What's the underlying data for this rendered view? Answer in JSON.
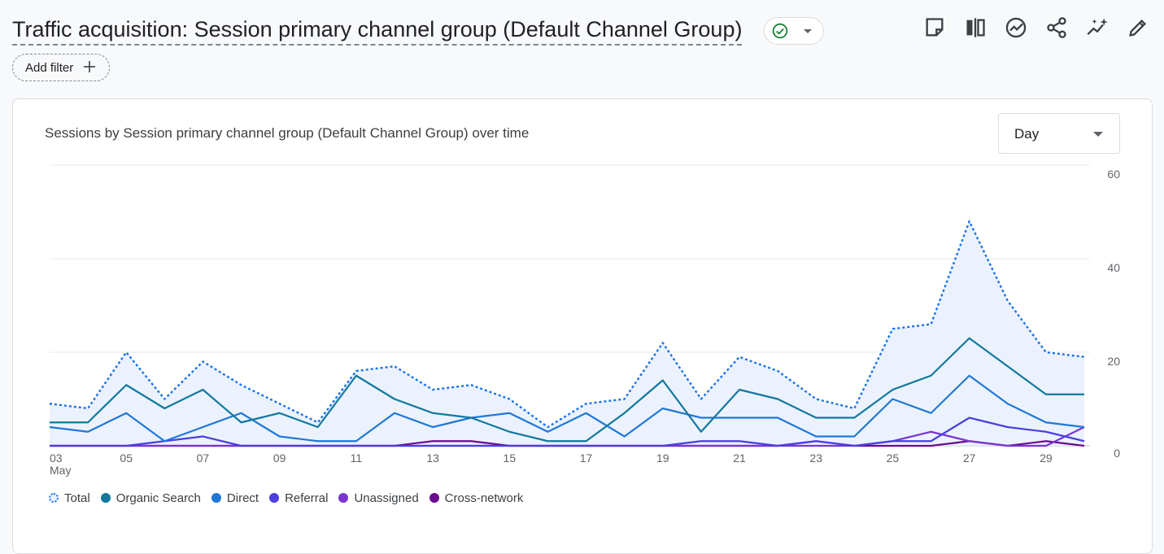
{
  "header": {
    "title": "Traffic acquisition: Session primary channel group (Default Channel Group)",
    "add_filter_label": "Add filter"
  },
  "toolbar": {
    "icons": [
      "note-icon",
      "compare-icon",
      "insights-icon",
      "share-icon",
      "sparkle-trend-icon",
      "edit-pencil-icon"
    ]
  },
  "card": {
    "select_value": "Day"
  },
  "colors": {
    "total": "#1a73e8",
    "organic_search": "#12789e",
    "direct": "#1f78d8",
    "referral": "#4b3fe0",
    "unassigned": "#7b35d0",
    "cross_network": "#6b0b8e",
    "area_fill": "#e8f0fe"
  },
  "chart_data": {
    "type": "line",
    "title": "Sessions by Session primary channel group (Default Channel Group) over time",
    "x": [
      "03",
      "04",
      "05",
      "06",
      "07",
      "08",
      "09",
      "10",
      "11",
      "12",
      "13",
      "14",
      "15",
      "16",
      "17",
      "18",
      "19",
      "20",
      "21",
      "22",
      "23",
      "24",
      "25",
      "26",
      "27",
      "28",
      "29",
      "30"
    ],
    "x_tick_labels": [
      "03",
      "05",
      "07",
      "09",
      "11",
      "13",
      "15",
      "17",
      "19",
      "21",
      "23",
      "25",
      "27",
      "29"
    ],
    "x_sublabel": "May",
    "ylim": [
      0,
      60
    ],
    "y_ticks": [
      "0",
      "20",
      "40",
      "60"
    ],
    "y_axis_side": "right",
    "grid": true,
    "legend_position": "bottom-left",
    "series": [
      {
        "name": "Total",
        "style": "dotted",
        "area": true,
        "values": [
          9,
          8,
          20,
          10,
          18,
          13,
          9,
          5,
          16,
          17,
          12,
          13,
          10,
          4,
          9,
          10,
          22,
          10,
          19,
          16,
          10,
          8,
          25,
          26,
          48,
          31,
          20,
          19
        ]
      },
      {
        "name": "Organic Search",
        "values": [
          5,
          5,
          13,
          8,
          12,
          5,
          7,
          4,
          15,
          10,
          7,
          6,
          3,
          1,
          1,
          7,
          14,
          3,
          12,
          10,
          6,
          6,
          12,
          15,
          23,
          17,
          11,
          11
        ]
      },
      {
        "name": "Direct",
        "values": [
          4,
          3,
          7,
          1,
          4,
          7,
          2,
          1,
          1,
          7,
          4,
          6,
          7,
          3,
          7,
          2,
          8,
          6,
          6,
          6,
          2,
          2,
          10,
          7,
          15,
          9,
          5,
          4
        ]
      },
      {
        "name": "Referral",
        "values": [
          0,
          0,
          0,
          1,
          2,
          0,
          0,
          0,
          0,
          0,
          0,
          0,
          0,
          0,
          0,
          0,
          0,
          1,
          1,
          0,
          1,
          0,
          1,
          1,
          6,
          4,
          3,
          1
        ]
      },
      {
        "name": "Unassigned",
        "values": [
          0,
          0,
          0,
          0,
          0,
          0,
          0,
          0,
          0,
          0,
          0,
          0,
          0,
          0,
          0,
          0,
          0,
          0,
          0,
          0,
          0,
          0,
          1,
          3,
          1,
          0,
          0,
          4
        ]
      },
      {
        "name": "Cross-network",
        "values": [
          0,
          0,
          0,
          0,
          0,
          0,
          0,
          0,
          0,
          0,
          1,
          1,
          0,
          0,
          0,
          0,
          0,
          0,
          0,
          0,
          1,
          0,
          0,
          0,
          1,
          0,
          1,
          0
        ]
      }
    ]
  }
}
